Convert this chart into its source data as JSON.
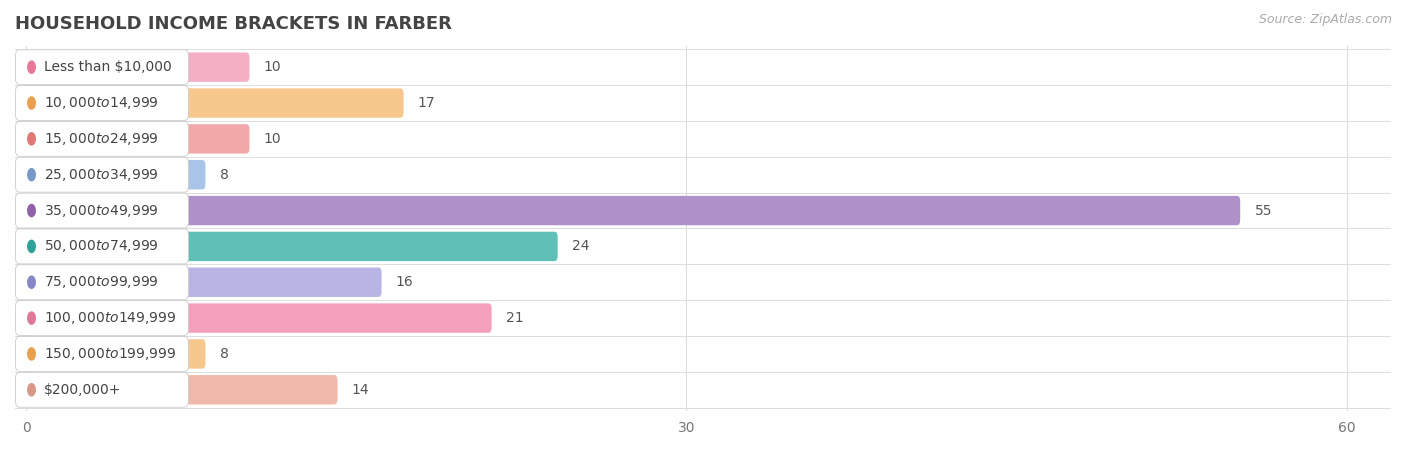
{
  "title": "HOUSEHOLD INCOME BRACKETS IN FARBER",
  "source": "Source: ZipAtlas.com",
  "categories": [
    "Less than $10,000",
    "$10,000 to $14,999",
    "$15,000 to $24,999",
    "$25,000 to $34,999",
    "$35,000 to $49,999",
    "$50,000 to $74,999",
    "$75,000 to $99,999",
    "$100,000 to $149,999",
    "$150,000 to $199,999",
    "$200,000+"
  ],
  "values": [
    10,
    17,
    10,
    8,
    55,
    24,
    16,
    21,
    8,
    14
  ],
  "bar_colors": [
    "#f5afc4",
    "#f7c88e",
    "#f2a8a8",
    "#a8c4e8",
    "#b090c8",
    "#60c0b8",
    "#b8b4e4",
    "#f4a0bc",
    "#f7c88e",
    "#f0b8a8"
  ],
  "dot_colors": [
    "#e87898",
    "#e8a050",
    "#e07878",
    "#7898c8",
    "#9060a8",
    "#30a098",
    "#8888c8",
    "#e07898",
    "#e8a050",
    "#d89888"
  ],
  "xlim": [
    0,
    60
  ],
  "xticks": [
    0,
    30,
    60
  ],
  "background_color": "#ffffff",
  "row_line_color": "#dddddd",
  "title_fontsize": 13,
  "label_fontsize": 10,
  "value_fontsize": 10,
  "source_fontsize": 9,
  "title_color": "#444444",
  "label_color": "#444444",
  "value_color": "#555555",
  "source_color": "#aaaaaa"
}
